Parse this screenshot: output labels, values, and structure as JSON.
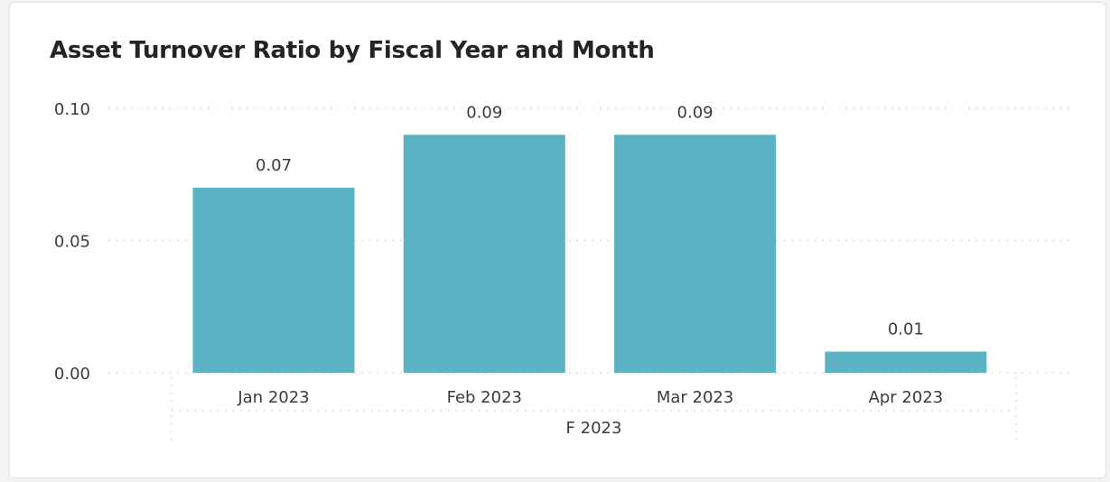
{
  "chart_data": {
    "type": "bar",
    "title": "Asset Turnover Ratio by Fiscal Year and Month",
    "categories": [
      "Jan 2023",
      "Feb 2023",
      "Mar 2023",
      "Apr 2023"
    ],
    "values": [
      0.07,
      0.09,
      0.09,
      0.008
    ],
    "data_labels": [
      "0.07",
      "0.09",
      "0.09",
      "0.01"
    ],
    "group_label": "F 2023",
    "y_ticks": [
      "0.00",
      "0.05",
      "0.10"
    ],
    "ylim": [
      0,
      0.1
    ],
    "grid": true,
    "bar_color": "#5BB2C3"
  }
}
